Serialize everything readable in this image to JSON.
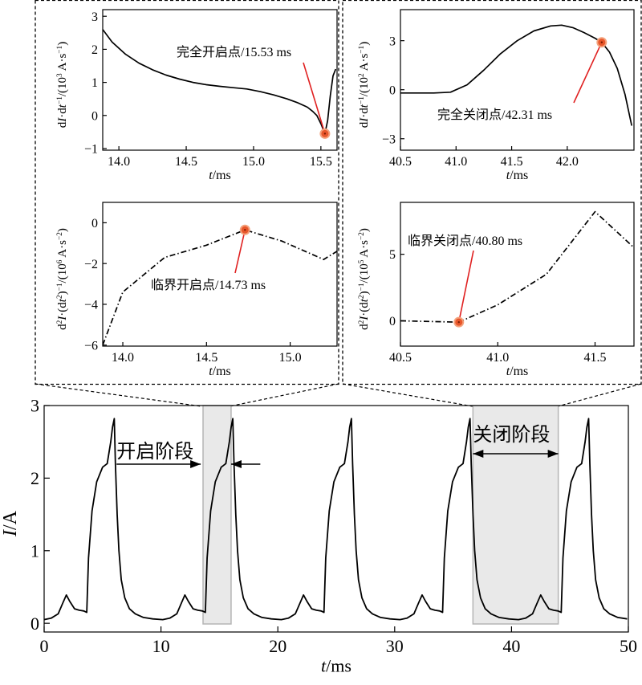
{
  "figure": {
    "background": "#ffffff",
    "line_color": "#000000"
  },
  "chart_data": [
    {
      "id": "top-left-upper",
      "type": "line",
      "ylabel": "dI·dt⁻¹/(10³ A·s⁻¹)",
      "xlabel": "t/ms",
      "xlim": [
        13.88,
        15.62
      ],
      "ylim": [
        -1.05,
        3.2
      ],
      "xticks": [
        "14.0",
        "14.5",
        "15.0",
        "15.5"
      ],
      "yticks": [
        "−1",
        "0",
        "1",
        "2",
        "3"
      ],
      "grid": false,
      "series": [
        {
          "style": "solid",
          "x": [
            13.88,
            13.95,
            14.05,
            14.15,
            14.25,
            14.35,
            14.45,
            14.55,
            14.65,
            14.75,
            14.85,
            14.95,
            15.05,
            15.15,
            15.25,
            15.33,
            15.4,
            15.44,
            15.47,
            15.5,
            15.52,
            15.53,
            15.55,
            15.57,
            15.59,
            15.61
          ],
          "y": [
            2.6,
            2.22,
            1.85,
            1.58,
            1.38,
            1.22,
            1.1,
            1.0,
            0.93,
            0.88,
            0.84,
            0.8,
            0.72,
            0.62,
            0.5,
            0.38,
            0.25,
            0.12,
            0.0,
            -0.25,
            -0.45,
            -0.55,
            -0.15,
            0.6,
            1.2,
            1.4
          ]
        }
      ],
      "annotations": [
        {
          "text": "完全开启点/15.53 ms",
          "x": 15.53,
          "y": -0.55
        }
      ]
    },
    {
      "id": "top-right-upper",
      "type": "line",
      "ylabel": "dI·dt⁻¹/(10² A·s⁻¹)",
      "xlabel": "t/ms",
      "xlim": [
        40.5,
        42.6
      ],
      "ylim": [
        -3.7,
        4.9
      ],
      "xticks": [
        "40.5",
        "41.0",
        "41.5",
        "42.0"
      ],
      "yticks": [
        "−3",
        "0",
        "3"
      ],
      "grid": false,
      "series": [
        {
          "style": "solid",
          "x": [
            40.5,
            40.8,
            40.95,
            41.1,
            41.25,
            41.4,
            41.55,
            41.7,
            41.85,
            41.95,
            42.05,
            42.15,
            42.25,
            42.31,
            42.38,
            42.45,
            42.52,
            42.58
          ],
          "y": [
            -0.2,
            -0.2,
            -0.15,
            0.3,
            1.2,
            2.2,
            3.0,
            3.6,
            3.9,
            3.95,
            3.8,
            3.5,
            3.15,
            2.9,
            2.3,
            1.3,
            -0.3,
            -2.2
          ]
        }
      ],
      "annotations": [
        {
          "text": "完全关闭点/42.31 ms",
          "x": 42.31,
          "y": 2.9
        }
      ]
    },
    {
      "id": "top-left-lower",
      "type": "line",
      "ylabel": "d²I·(dt²)⁻¹/(10⁶ A·s⁻²)",
      "xlabel": "t/ms",
      "xlim": [
        13.88,
        15.28
      ],
      "ylim": [
        -6.05,
        1.0
      ],
      "xticks": [
        "14.0",
        "14.5",
        "15.0"
      ],
      "yticks": [
        "−6",
        "−4",
        "−2",
        "0"
      ],
      "grid": false,
      "series": [
        {
          "style": "dashdot",
          "x": [
            13.88,
            14.0,
            14.25,
            14.5,
            14.73,
            14.95,
            15.2,
            15.28
          ],
          "y": [
            -6.0,
            -3.4,
            -1.7,
            -1.1,
            -0.35,
            -0.9,
            -1.8,
            -1.4
          ]
        }
      ],
      "annotations": [
        {
          "text": "临界开启点/14.73 ms",
          "x": 14.73,
          "y": -0.35
        }
      ]
    },
    {
      "id": "top-right-lower",
      "type": "line",
      "ylabel": "d²I·(dt²)⁻¹/(10⁵ A·s⁻²)",
      "xlabel": "t/ms",
      "xlim": [
        40.5,
        41.7
      ],
      "ylim": [
        -1.9,
        8.9
      ],
      "xticks": [
        "40.5",
        "41.0",
        "41.5"
      ],
      "yticks": [
        "0",
        "5"
      ],
      "grid": false,
      "series": [
        {
          "style": "dashdot",
          "x": [
            40.5,
            40.65,
            40.8,
            41.0,
            41.25,
            41.5,
            41.7
          ],
          "y": [
            0.0,
            -0.05,
            -0.1,
            1.2,
            3.5,
            8.2,
            5.5
          ]
        }
      ],
      "annotations": [
        {
          "text": "临界关闭点/40.80 ms",
          "x": 40.8,
          "y": -0.1
        }
      ]
    },
    {
      "id": "bottom-main",
      "type": "line",
      "ylabel": "I/A",
      "xlabel": "t/ms",
      "xlim": [
        0,
        50
      ],
      "ylim": [
        -0.12,
        3.0
      ],
      "xticks": [
        "0",
        "10",
        "20",
        "30",
        "40",
        "50"
      ],
      "yticks": [
        "0",
        "1",
        "2",
        "3"
      ],
      "grid": false,
      "period": 10.15,
      "cycles": 5,
      "pulse": {
        "x": [
          0,
          0.6,
          1.2,
          1.6,
          1.9,
          2.2,
          2.6,
          3.0,
          3.4,
          3.65,
          3.8,
          4.1,
          4.5,
          5.0,
          5.4,
          5.7,
          5.85,
          6.0,
          6.1,
          6.25,
          6.4,
          6.6,
          6.9,
          7.3,
          7.8,
          8.5,
          9.3,
          10.15
        ],
        "y": [
          0.05,
          0.07,
          0.13,
          0.28,
          0.39,
          0.3,
          0.2,
          0.18,
          0.17,
          0.15,
          0.9,
          1.55,
          1.95,
          2.15,
          2.2,
          2.5,
          2.7,
          2.82,
          2.2,
          1.5,
          1.0,
          0.6,
          0.35,
          0.2,
          0.13,
          0.08,
          0.06,
          0.05
        ]
      },
      "regions": [
        {
          "label": "开启阶段",
          "x0": 13.6,
          "x1": 16.0,
          "fill": "#e9e9e9",
          "stroke": "#b5b5b5"
        },
        {
          "label": "关闭阶段",
          "x0": 36.7,
          "x1": 44.0,
          "fill": "#e9e9e9",
          "stroke": "#b5b5b5"
        }
      ],
      "arrows": [
        {
          "label": "开启阶段",
          "y": 2.01,
          "x_from": 6.2,
          "x_to": 13.4,
          "x_back_from": 18.5,
          "x_back_to": 16.0
        },
        {
          "label": "关闭阶段",
          "y": 2.16,
          "x_from": 36.7,
          "x_to": 44.0
        }
      ]
    }
  ],
  "markers": {
    "color": "#e8562a",
    "halo": "#f4a07a",
    "leader": "#e02020"
  }
}
